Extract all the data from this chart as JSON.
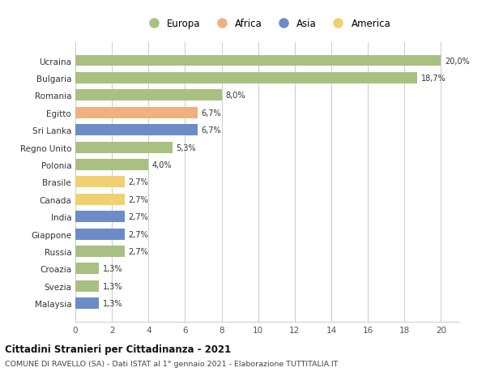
{
  "categories": [
    "Ucraina",
    "Bulgaria",
    "Romania",
    "Egitto",
    "Sri Lanka",
    "Regno Unito",
    "Polonia",
    "Brasile",
    "Canada",
    "India",
    "Giappone",
    "Russia",
    "Croazia",
    "Svezia",
    "Malaysia"
  ],
  "values": [
    20.0,
    18.7,
    8.0,
    6.7,
    6.7,
    5.3,
    4.0,
    2.7,
    2.7,
    2.7,
    2.7,
    2.7,
    1.3,
    1.3,
    1.3
  ],
  "labels": [
    "20,0%",
    "18,7%",
    "8,0%",
    "6,7%",
    "6,7%",
    "5,3%",
    "4,0%",
    "2,7%",
    "2,7%",
    "2,7%",
    "2,7%",
    "2,7%",
    "1,3%",
    "1,3%",
    "1,3%"
  ],
  "continents": [
    "Europa",
    "Europa",
    "Europa",
    "Africa",
    "Asia",
    "Europa",
    "Europa",
    "America",
    "America",
    "Asia",
    "Asia",
    "Europa",
    "Europa",
    "Europa",
    "Asia"
  ],
  "colors": {
    "Europa": "#a8c080",
    "Africa": "#f0b080",
    "Asia": "#6b8cc7",
    "America": "#f0d070"
  },
  "legend_order": [
    "Europa",
    "Africa",
    "Asia",
    "America"
  ],
  "xlim": [
    0,
    21
  ],
  "xticks": [
    0,
    2,
    4,
    6,
    8,
    10,
    12,
    14,
    16,
    18,
    20
  ],
  "title": "Cittadini Stranieri per Cittadinanza - 2021",
  "subtitle": "COMUNE DI RAVELLO (SA) - Dati ISTAT al 1° gennaio 2021 - Elaborazione TUTTITALIA.IT",
  "background_color": "#ffffff",
  "grid_color": "#cccccc"
}
